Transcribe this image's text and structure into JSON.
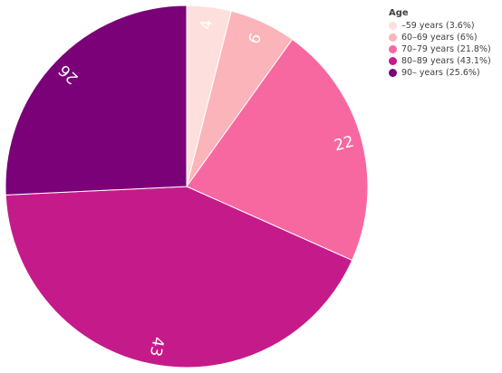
{
  "chart_data": {
    "type": "pie",
    "legend_title": "Age",
    "legend_position": "top-right",
    "start": "top, clockwise",
    "slices": [
      {
        "label": "4",
        "legend": "–59 years (3.6%)",
        "value": 4,
        "color": "#fde0dd"
      },
      {
        "label": "6",
        "legend": "60–69 years (6%)",
        "value": 6,
        "color": "#fbb4b9"
      },
      {
        "label": "22",
        "legend": "70–79 years (21.8%)",
        "value": 22,
        "color": "#f768a1"
      },
      {
        "label": "43",
        "legend": "80–89 years (43.1%)",
        "value": 43,
        "color": "#c51b8a"
      },
      {
        "label": "26",
        "legend": "90– years (25.6%)",
        "value": 26,
        "color": "#7a0177"
      }
    ]
  }
}
